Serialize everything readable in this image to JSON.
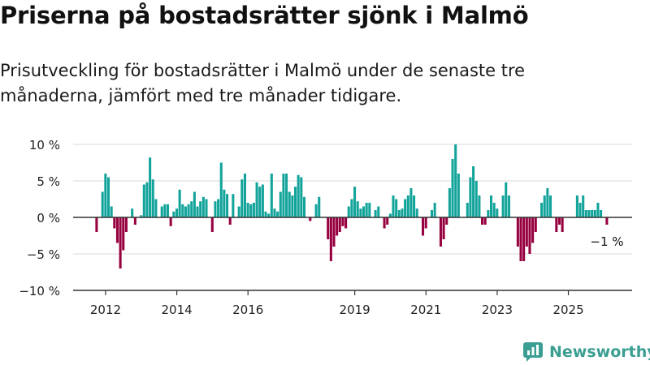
{
  "header": {
    "title": "Priserna på bostadsrätter sjönk i Malmö",
    "subtitle": "Prisutveckling för bostadsrätter i Malmö under de senaste tre månaderna, jämfört med tre månader tidigare."
  },
  "brand": {
    "name": "Newsworthy",
    "icon": "newsworthy-logo-icon"
  },
  "colors": {
    "positive": "#12a39a",
    "negative": "#97003f",
    "grid": "#d9d9d9",
    "axis": "#333333"
  },
  "chart_data": {
    "type": "bar",
    "x_start": "2011-10",
    "x_end": "2025-01",
    "x_unit": "month",
    "ylim": [
      -10,
      10
    ],
    "yticks": [
      10,
      5,
      0,
      -5,
      -10
    ],
    "ytick_labels": [
      "10 %",
      "5 %",
      "0 %",
      "−5 %",
      "−10 %"
    ],
    "xticks": [
      "2012",
      "2014",
      "2016",
      "2019",
      "2021",
      "2023",
      "2025"
    ],
    "last_value_label": "−1 %",
    "values": [
      -2,
      0,
      3.5,
      6,
      5.5,
      1.5,
      -1.5,
      -3.5,
      -7,
      -4.5,
      -2,
      0,
      1.2,
      -1,
      0,
      0.3,
      4.5,
      4.8,
      8.2,
      5.2,
      2.5,
      0,
      1.5,
      1.8,
      1.8,
      -1.2,
      0.8,
      1.2,
      3.8,
      1.8,
      1.5,
      1.8,
      2.2,
      3.5,
      1.5,
      2.2,
      2.8,
      2.5,
      0,
      -2,
      2.2,
      2.5,
      7.5,
      3.8,
      3.2,
      -1,
      3.2,
      0,
      1.5,
      5.2,
      6,
      2,
      1.8,
      2,
      4.8,
      4.2,
      4.5,
      0.8,
      0.5,
      6,
      1.2,
      0.8,
      3.5,
      6,
      6,
      3.5,
      3,
      4.2,
      5.8,
      5.5,
      2.8,
      0,
      -0.5,
      0,
      1.8,
      2.8,
      0,
      0,
      -3,
      -6,
      -4,
      -2.5,
      -2,
      -1.2,
      -1.5,
      1.5,
      2.5,
      4.2,
      2.2,
      1.2,
      1.5,
      2,
      2,
      0,
      1,
      1.5,
      0,
      -1.5,
      -1,
      0.5,
      3,
      2.5,
      1,
      1.2,
      2.5,
      3,
      4,
      3,
      1.2,
      0,
      -2.5,
      -1.5,
      0,
      1,
      2,
      0,
      -4,
      -3,
      -1,
      4,
      8,
      10,
      6,
      0,
      0,
      2,
      5.5,
      7,
      5,
      3,
      -1,
      -1,
      1,
      3,
      2,
      1.2,
      0,
      3,
      4.8,
      3,
      0,
      0,
      -4,
      -6,
      -6,
      -4,
      -5,
      -3.5,
      -2,
      0,
      2,
      3,
      4,
      3,
      0,
      -2,
      -1,
      -2,
      0,
      0,
      0,
      0,
      3,
      2,
      3,
      1,
      1,
      1,
      1,
      2,
      1,
      0,
      -1
    ]
  }
}
